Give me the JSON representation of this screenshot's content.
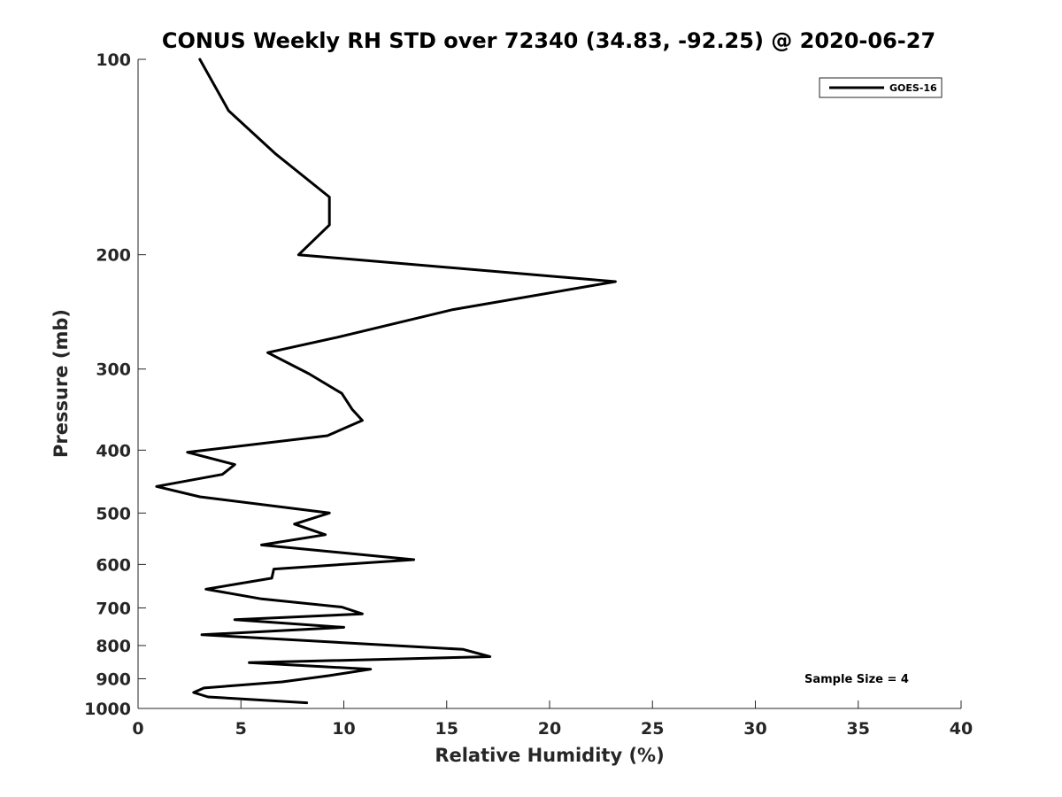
{
  "chart_data": {
    "type": "line",
    "title": "CONUS Weekly RH STD over 72340 (34.83, -92.25) @ 2020-06-27",
    "xlabel": "Relative Humidity (%)",
    "ylabel": "Pressure (mb)",
    "xlim": [
      0,
      40
    ],
    "ylim": [
      100,
      1000
    ],
    "y_scale": "log",
    "y_reversed": true,
    "grid": false,
    "legend_position": "top-right",
    "x_ticks": [
      0,
      5,
      10,
      15,
      20,
      25,
      30,
      35,
      40
    ],
    "x_tick_labels": [
      "0",
      "5",
      "10",
      "15",
      "20",
      "25",
      "30",
      "35",
      "40"
    ],
    "y_ticks": [
      100,
      200,
      300,
      400,
      500,
      600,
      700,
      800,
      900,
      1000
    ],
    "y_tick_labels": [
      "100",
      "200",
      "300",
      "400",
      "500",
      "600",
      "700",
      "800",
      "900",
      "1000"
    ],
    "series": [
      {
        "name": "GOES-16",
        "color": "#000000",
        "x": [
          3.0,
          4.4,
          6.7,
          9.3,
          9.3,
          7.8,
          23.2,
          15.3,
          9.7,
          6.3,
          8.3,
          9.9,
          10.4,
          10.9,
          9.2,
          2.4,
          4.7,
          4.1,
          0.9,
          3.0,
          9.3,
          7.6,
          9.1,
          6.0,
          13.4,
          6.6,
          6.5,
          3.3,
          6.0,
          9.9,
          10.9,
          4.7,
          10.0,
          3.1,
          15.8,
          17.1,
          5.4,
          11.3,
          9.3,
          7.0,
          3.2,
          2.7,
          3.4,
          8.2
        ],
        "y": [
          100,
          120,
          140,
          163,
          180,
          200,
          220,
          243,
          268,
          283,
          305,
          327,
          346,
          360,
          380,
          403,
          421,
          436,
          455,
          472,
          500,
          520,
          540,
          560,
          590,
          610,
          630,
          655,
          678,
          698,
          715,
          730,
          750,
          770,
          811,
          832,
          850,
          870,
          890,
          910,
          930,
          945,
          960,
          980
        ]
      }
    ],
    "annotations": [
      "Sample Size = 4"
    ]
  }
}
